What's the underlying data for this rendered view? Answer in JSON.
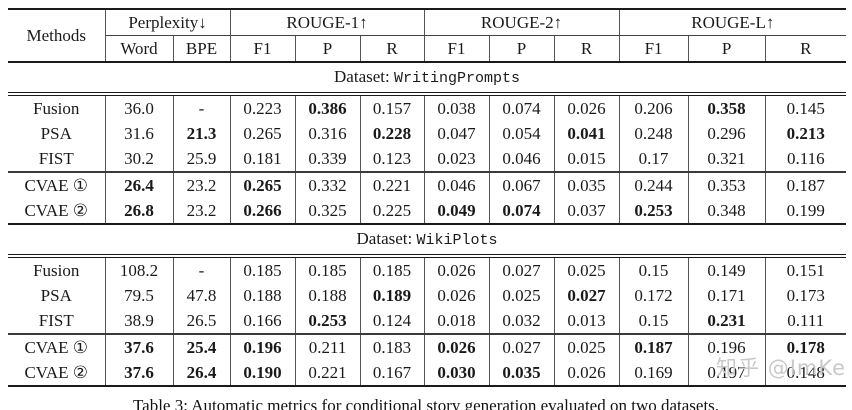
{
  "table": {
    "header": {
      "methods": "Methods",
      "groups": [
        {
          "label": "Perplexity↓",
          "subs": [
            "Word",
            "BPE"
          ]
        },
        {
          "label": "ROUGE-1↑",
          "subs": [
            "F1",
            "P",
            "R"
          ]
        },
        {
          "label": "ROUGE-2↑",
          "subs": [
            "F1",
            "P",
            "R"
          ]
        },
        {
          "label": "ROUGE-L↑",
          "subs": [
            "F1",
            "P",
            "R"
          ]
        }
      ]
    },
    "sections": [
      {
        "dataset_prefix": "Dataset: ",
        "dataset_name": "WritingPrompts",
        "groups": [
          {
            "rows": [
              {
                "method": "Fusion",
                "values": [
                  "36.0",
                  "-",
                  "0.223",
                  "0.386",
                  "0.157",
                  "0.038",
                  "0.074",
                  "0.026",
                  "0.206",
                  "0.358",
                  "0.145"
                ],
                "bold": [
                  3,
                  9
                ]
              },
              {
                "method": "PSA",
                "values": [
                  "31.6",
                  "21.3",
                  "0.265",
                  "0.316",
                  "0.228",
                  "0.047",
                  "0.054",
                  "0.041",
                  "0.248",
                  "0.296",
                  "0.213"
                ],
                "bold": [
                  1,
                  4,
                  7,
                  10
                ]
              },
              {
                "method": "FIST",
                "values": [
                  "30.2",
                  "25.9",
                  "0.181",
                  "0.339",
                  "0.123",
                  "0.023",
                  "0.046",
                  "0.015",
                  "0.17",
                  "0.321",
                  "0.116"
                ],
                "bold": []
              }
            ]
          },
          {
            "rows": [
              {
                "method": "CVAE ①",
                "values": [
                  "26.4",
                  "23.2",
                  "0.265",
                  "0.332",
                  "0.221",
                  "0.046",
                  "0.067",
                  "0.035",
                  "0.244",
                  "0.353",
                  "0.187"
                ],
                "bold": [
                  0,
                  2
                ]
              },
              {
                "method": "CVAE ②",
                "values": [
                  "26.8",
                  "23.2",
                  "0.266",
                  "0.325",
                  "0.225",
                  "0.049",
                  "0.074",
                  "0.037",
                  "0.253",
                  "0.348",
                  "0.199"
                ],
                "bold": [
                  0,
                  2,
                  5,
                  6,
                  8
                ]
              }
            ]
          }
        ]
      },
      {
        "dataset_prefix": "Dataset: ",
        "dataset_name": "WikiPlots",
        "groups": [
          {
            "rows": [
              {
                "method": "Fusion",
                "values": [
                  "108.2",
                  "-",
                  "0.185",
                  "0.185",
                  "0.185",
                  "0.026",
                  "0.027",
                  "0.025",
                  "0.15",
                  "0.149",
                  "0.151"
                ],
                "bold": []
              },
              {
                "method": "PSA",
                "values": [
                  "79.5",
                  "47.8",
                  "0.188",
                  "0.188",
                  "0.189",
                  "0.026",
                  "0.025",
                  "0.027",
                  "0.172",
                  "0.171",
                  "0.173"
                ],
                "bold": [
                  4,
                  7
                ]
              },
              {
                "method": "FIST",
                "values": [
                  "38.9",
                  "26.5",
                  "0.166",
                  "0.253",
                  "0.124",
                  "0.018",
                  "0.032",
                  "0.013",
                  "0.15",
                  "0.231",
                  "0.111"
                ],
                "bold": [
                  3,
                  9
                ]
              }
            ]
          },
          {
            "rows": [
              {
                "method": "CVAE ①",
                "values": [
                  "37.6",
                  "25.4",
                  "0.196",
                  "0.211",
                  "0.183",
                  "0.026",
                  "0.027",
                  "0.025",
                  "0.187",
                  "0.196",
                  "0.178"
                ],
                "bold": [
                  0,
                  1,
                  2,
                  5,
                  8,
                  10
                ]
              },
              {
                "method": "CVAE ②",
                "values": [
                  "37.6",
                  "26.4",
                  "0.190",
                  "0.221",
                  "0.167",
                  "0.030",
                  "0.035",
                  "0.026",
                  "0.169",
                  "0.197",
                  "0.148"
                ],
                "bold": [
                  0,
                  1,
                  2,
                  5,
                  6
                ]
              }
            ]
          }
        ]
      }
    ]
  },
  "caption": "Table 3: Automatic metrics for conditional story generation evaluated on two datasets.",
  "watermark": "知乎 @ImKe",
  "colors": {
    "rule": "#1a1a1a",
    "watermark": "#c9c9c9"
  }
}
